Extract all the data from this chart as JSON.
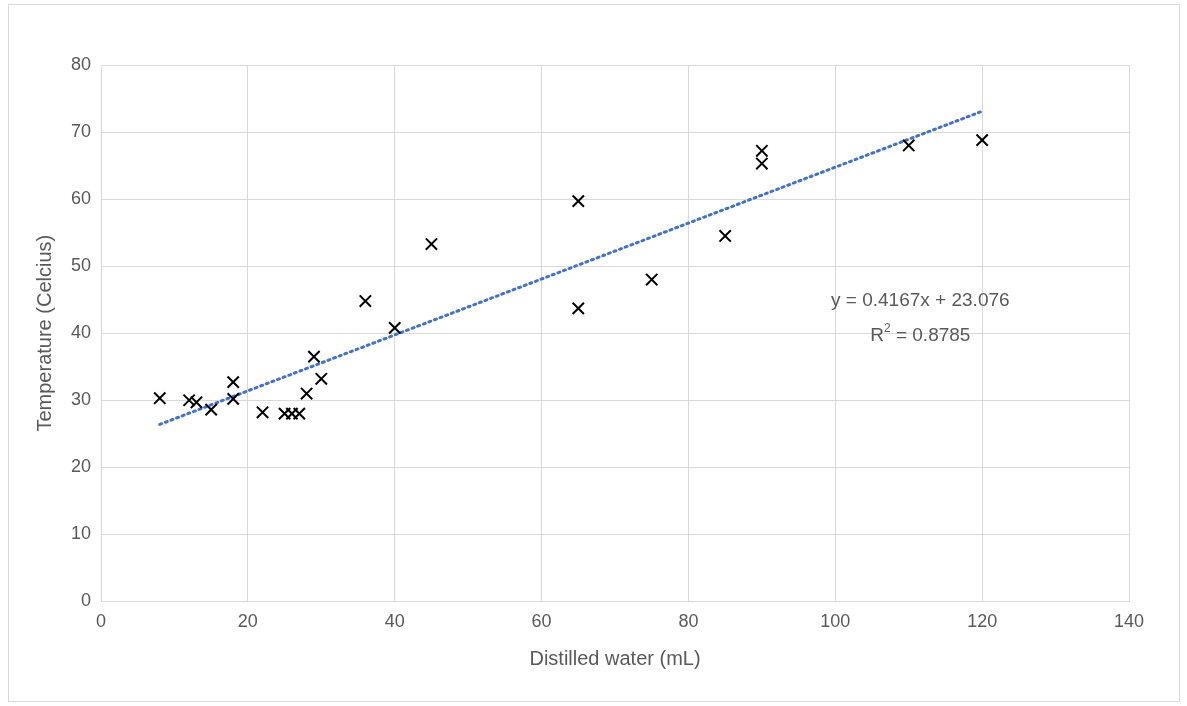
{
  "chart_data": {
    "type": "scatter",
    "xlabel": "Distilled water (mL)",
    "ylabel": "Temperature (Celcius)",
    "xlim": [
      0,
      140
    ],
    "xticks": [
      0,
      20,
      40,
      60,
      80,
      100,
      120,
      140
    ],
    "ylim": [
      0,
      80
    ],
    "yticks": [
      0,
      10,
      20,
      30,
      40,
      50,
      60,
      70,
      80
    ],
    "grid": true,
    "legend": false,
    "marker": "cross",
    "series": [
      {
        "type": "scatter",
        "color": "#000000",
        "x": [
          8,
          12,
          13,
          15,
          18,
          18,
          22,
          25,
          26,
          27,
          28,
          29,
          30,
          36,
          40,
          45,
          65,
          65,
          75,
          85,
          90,
          90,
          110,
          120
        ],
        "values": [
          30.3,
          30,
          29.7,
          28.6,
          32.7,
          30.2,
          28.2,
          28,
          28,
          28,
          31,
          36.5,
          33.2,
          44.8,
          40.8,
          53.3,
          59.7,
          43.7,
          48,
          54.5,
          67.2,
          65.3,
          68,
          68.8
        ]
      },
      {
        "type": "line",
        "color": "#4472c4",
        "line_style": "dotted",
        "marker": "none",
        "x": [
          8,
          120
        ],
        "values": [
          26.4,
          73.1
        ]
      }
    ],
    "annotations": [
      "y = 0.4167x + 23.076",
      "R$^{2}$ = 0.8785"
    ]
  }
}
